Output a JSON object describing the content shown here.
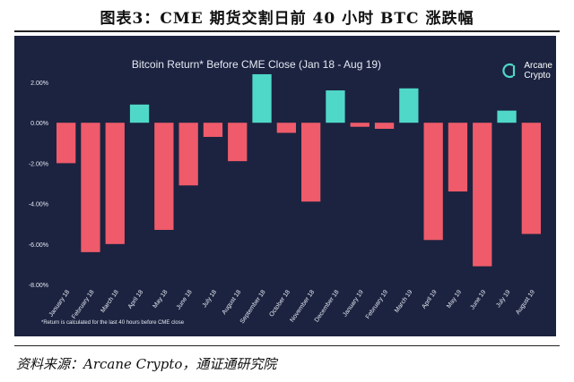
{
  "figure_title": "图表3：CME 期货交割日前 40 小时 BTC 涨跌幅",
  "source": "资料来源：Arcane Crypto，通证通研究院",
  "brand": {
    "line1": "Arcane",
    "line2": "Crypto"
  },
  "colors": {
    "background": "#1b2340",
    "positive": "#4fd8c8",
    "negative": "#ef5b6a",
    "grid": "#3a4566",
    "text": "#e6e9f2"
  },
  "chart_data": {
    "type": "bar",
    "title": "Bitcoin Return* Before CME Close (Jan 18 - Aug 19)",
    "footnote": "*Return is calculated for the last 40 hours before CME close",
    "xlabel": "",
    "ylabel": "",
    "ylim": [
      -8.0,
      2.0
    ],
    "yticks": [
      "2.00%",
      "0.00%",
      "-2.00%",
      "-4.00%",
      "-6.00%",
      "-8.00%"
    ],
    "ytick_values": [
      2,
      0,
      -2,
      -4,
      -6,
      -8
    ],
    "grid": false,
    "categories": [
      "January 18",
      "February 18",
      "March 18",
      "April 18",
      "May 18",
      "June 18",
      "July 18",
      "August 18",
      "September 18",
      "October 18",
      "November 18",
      "December 18",
      "January 19",
      "February 19",
      "March 19",
      "April 19",
      "May 19",
      "June 19",
      "July 19",
      "August 19"
    ],
    "values": [
      -2.0,
      -6.4,
      -6.0,
      0.9,
      -5.3,
      -3.1,
      -0.7,
      -1.9,
      2.4,
      -0.5,
      -3.9,
      1.6,
      -0.2,
      -0.3,
      1.7,
      -5.8,
      -3.4,
      -7.1,
      0.6,
      -5.5
    ]
  }
}
